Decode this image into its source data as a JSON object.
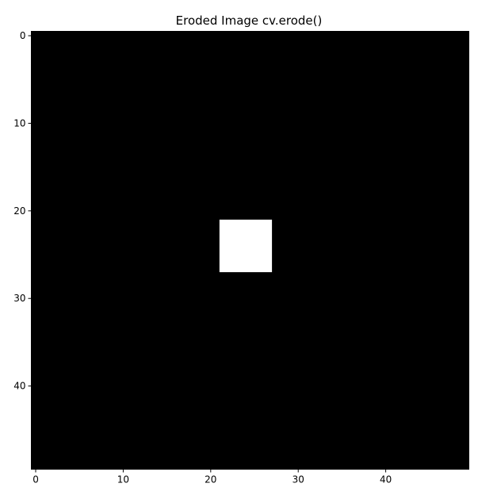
{
  "chart_data": {
    "type": "heatmap",
    "title": "Eroded Image cv.erode()",
    "grid": false,
    "width": 50,
    "height": 50,
    "background_value": 0,
    "white_region": {
      "row_start": 22,
      "row_end": 27,
      "col_start": 22,
      "col_end": 27,
      "value": 255
    },
    "xticks": [
      0,
      10,
      20,
      30,
      40
    ],
    "yticks": [
      0,
      10,
      20,
      30,
      40
    ],
    "colormap": {
      "low": "#000000",
      "high": "#ffffff"
    }
  }
}
